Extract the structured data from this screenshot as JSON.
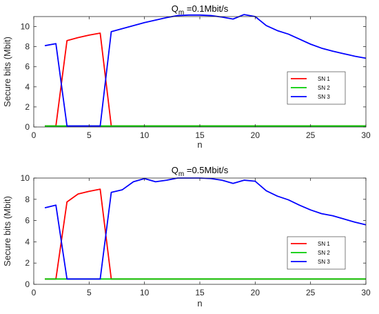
{
  "chart_data": [
    {
      "type": "line",
      "title_main": "Q",
      "title_sub": "m",
      "title_rest": " =0.1Mbit/s",
      "xlabel": "n",
      "ylabel": "Secure bits (Mbit)",
      "xlim": [
        0,
        30
      ],
      "ylim": [
        0,
        11
      ],
      "xticks": [
        0,
        5,
        10,
        15,
        20,
        25,
        30
      ],
      "yticks": [
        0,
        2,
        4,
        6,
        8,
        10
      ],
      "legend_position": "right",
      "series": [
        {
          "name": "SN 1",
          "color": "#ff0000",
          "x": [
            1,
            2,
            3,
            4,
            5,
            6,
            7,
            8,
            9,
            10,
            11,
            12,
            13,
            14,
            15,
            16,
            17,
            18,
            19,
            20,
            21,
            22,
            23,
            24,
            25,
            26,
            27,
            28,
            29,
            30
          ],
          "values": [
            0.1,
            0.1,
            8.6,
            8.9,
            9.15,
            9.35,
            0.1,
            0.1,
            0.1,
            0.1,
            0.1,
            0.1,
            0.1,
            0.1,
            0.1,
            0.1,
            0.1,
            0.1,
            0.1,
            0.1,
            0.1,
            0.1,
            0.1,
            0.1,
            0.1,
            0.1,
            0.1,
            0.1,
            0.1,
            0.1
          ]
        },
        {
          "name": "SN 2",
          "color": "#00cc00",
          "x": [
            1,
            30
          ],
          "values": [
            0.1,
            0.1
          ]
        },
        {
          "name": "SN 3",
          "color": "#0000ff",
          "x": [
            1,
            2,
            3,
            4,
            5,
            6,
            7,
            8,
            9,
            10,
            11,
            12,
            13,
            14,
            15,
            16,
            17,
            18,
            19,
            20,
            21,
            22,
            23,
            24,
            25,
            26,
            27,
            28,
            29,
            30
          ],
          "values": [
            8.1,
            8.3,
            0.1,
            0.1,
            0.1,
            0.1,
            9.5,
            9.8,
            10.1,
            10.4,
            10.65,
            10.9,
            11.1,
            11.15,
            11.15,
            11.1,
            10.95,
            10.75,
            11.2,
            11.0,
            10.1,
            9.6,
            9.25,
            8.75,
            8.25,
            7.85,
            7.55,
            7.3,
            7.05,
            6.85
          ]
        }
      ]
    },
    {
      "type": "line",
      "title_main": "Q",
      "title_sub": "m",
      "title_rest": " =0.5Mbit/s",
      "xlabel": "n",
      "ylabel": "Secure bits (Mbit)",
      "xlim": [
        0,
        30
      ],
      "ylim": [
        0,
        10
      ],
      "xticks": [
        0,
        5,
        10,
        15,
        20,
        25,
        30
      ],
      "yticks": [
        0,
        2,
        4,
        6,
        8,
        10
      ],
      "legend_position": "right",
      "series": [
        {
          "name": "SN 1",
          "color": "#ff0000",
          "x": [
            1,
            2,
            3,
            4,
            5,
            6,
            7,
            8,
            9,
            10,
            11,
            12,
            13,
            14,
            15,
            16,
            17,
            18,
            19,
            20,
            21,
            22,
            23,
            24,
            25,
            26,
            27,
            28,
            29,
            30
          ],
          "values": [
            0.5,
            0.5,
            7.75,
            8.5,
            8.75,
            8.95,
            0.5,
            0.5,
            0.5,
            0.5,
            0.5,
            0.5,
            0.5,
            0.5,
            0.5,
            0.5,
            0.5,
            0.5,
            0.5,
            0.5,
            0.5,
            0.5,
            0.5,
            0.5,
            0.5,
            0.5,
            0.5,
            0.5,
            0.5,
            0.5
          ]
        },
        {
          "name": "SN 2",
          "color": "#00cc00",
          "x": [
            1,
            30
          ],
          "values": [
            0.5,
            0.5
          ]
        },
        {
          "name": "SN 3",
          "color": "#0000ff",
          "x": [
            1,
            2,
            3,
            4,
            5,
            6,
            7,
            8,
            9,
            10,
            11,
            12,
            13,
            14,
            15,
            16,
            17,
            18,
            19,
            20,
            21,
            22,
            23,
            24,
            25,
            26,
            27,
            28,
            29,
            30
          ],
          "values": [
            7.2,
            7.45,
            0.5,
            0.5,
            0.5,
            0.5,
            8.65,
            8.9,
            9.65,
            9.95,
            9.65,
            9.8,
            10.0,
            10.0,
            10.0,
            9.95,
            9.8,
            9.5,
            9.8,
            9.7,
            8.8,
            8.3,
            7.95,
            7.45,
            7.0,
            6.65,
            6.45,
            6.15,
            5.85,
            5.6
          ]
        }
      ]
    }
  ]
}
